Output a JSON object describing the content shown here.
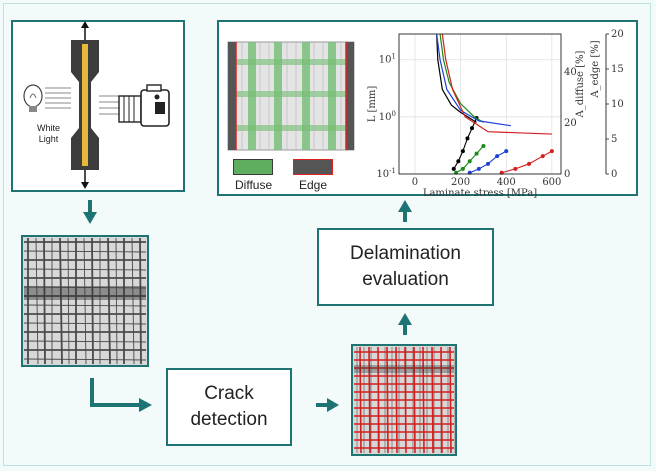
{
  "setup": {
    "light_label": "White\nLight"
  },
  "crack_detection": {
    "label": "Crack\ndetection"
  },
  "delamination": {
    "label": "Delamination\nevaluation"
  },
  "legend": {
    "diffuse": "Diffuse",
    "edge": "Edge",
    "diffuse_color": "#5fae5f",
    "edge_color": "#555555",
    "edge_border": "#d22"
  },
  "colors": {
    "accent": "#1d7473",
    "crack_red": "#d31f1f"
  },
  "chart_data": {
    "type": "line",
    "xlabel": "Laminate stress [MPa]",
    "ylabel": "L [mm]",
    "y2label": "A_diffuse [%]",
    "y3label": "A_edge [%]",
    "x_ticks": [
      "0",
      "200",
      "400",
      "600"
    ],
    "y_ticks": [
      "10^-1",
      "10^0",
      "10^1"
    ],
    "y2_ticks": [
      "0",
      "20",
      "40"
    ],
    "y3_ticks": [
      "0",
      "5",
      "10",
      "15",
      "20"
    ],
    "xlim": [
      -70,
      640
    ],
    "ylim_log10": [
      -1,
      1.45
    ],
    "y2lim": [
      0,
      55
    ],
    "series": [
      {
        "color": "#000000",
        "L": [
          [
            95,
            30
          ],
          [
            100,
            10
          ],
          [
            120,
            3
          ],
          [
            160,
            1.6
          ],
          [
            200,
            1.2
          ],
          [
            270,
            0.8
          ]
        ],
        "area": [
          [
            170,
            2
          ],
          [
            190,
            5
          ],
          [
            210,
            9
          ],
          [
            230,
            14
          ],
          [
            250,
            18
          ],
          [
            270,
            22
          ]
        ]
      },
      {
        "color": "#1a8a1a",
        "L": [
          [
            110,
            30
          ],
          [
            125,
            10
          ],
          [
            150,
            4
          ],
          [
            200,
            1.7
          ],
          [
            260,
            1.0
          ],
          [
            300,
            0.8
          ]
        ],
        "area": [
          [
            180,
            0.5
          ],
          [
            210,
            2
          ],
          [
            240,
            5
          ],
          [
            270,
            8
          ],
          [
            300,
            11
          ]
        ]
      },
      {
        "color": "#1f3fd8",
        "L": [
          [
            95,
            30
          ],
          [
            110,
            10
          ],
          [
            140,
            3
          ],
          [
            200,
            1.3
          ],
          [
            280,
            0.85
          ],
          [
            420,
            0.7
          ]
        ],
        "area": [
          [
            240,
            0.5
          ],
          [
            280,
            2
          ],
          [
            320,
            4
          ],
          [
            360,
            7
          ],
          [
            400,
            9
          ]
        ]
      },
      {
        "color": "#d31f1f",
        "L": [
          [
            120,
            30
          ],
          [
            135,
            10
          ],
          [
            165,
            3
          ],
          [
            220,
            1.0
          ],
          [
            320,
            0.55
          ],
          [
            600,
            0.5
          ]
        ],
        "area": [
          [
            380,
            0.5
          ],
          [
            440,
            2
          ],
          [
            500,
            4
          ],
          [
            560,
            7
          ],
          [
            600,
            9
          ]
        ]
      }
    ]
  }
}
